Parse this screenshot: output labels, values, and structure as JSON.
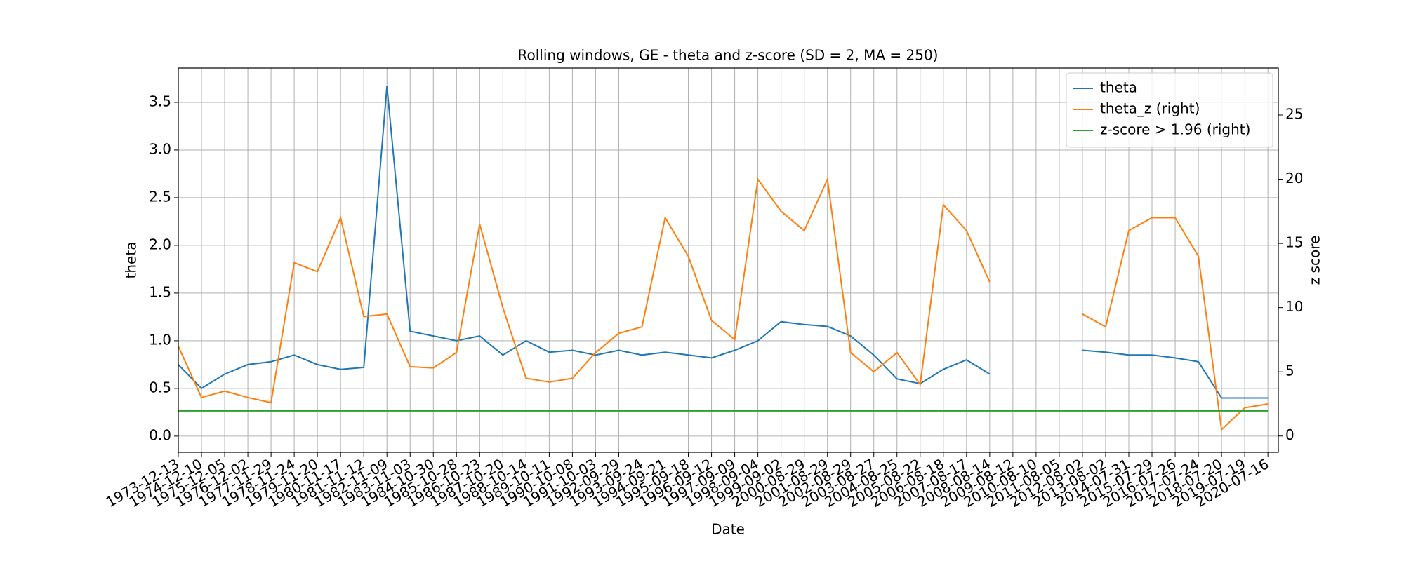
{
  "chart_data": {
    "type": "line",
    "title": "Rolling windows, GE - theta and z-score (SD = 2, MA = 250)",
    "x_label": "Date",
    "y_label": "theta",
    "y2_label": "z score",
    "categories": [
      "1973-12-13",
      "1974-12-10",
      "1975-12-05",
      "1976-12-02",
      "1977-11-29",
      "1978-11-24",
      "1979-11-20",
      "1980-11-17",
      "1981-11-12",
      "1982-11-09",
      "1983-11-03",
      "1984-10-30",
      "1985-10-28",
      "1986-10-23",
      "1987-10-20",
      "1988-10-14",
      "1989-10-11",
      "1990-10-08",
      "1991-10-03",
      "1992-09-29",
      "1993-09-24",
      "1994-09-21",
      "1995-09-18",
      "1996-09-12",
      "1997-09-09",
      "1998-09-04",
      "1999-09-02",
      "2000-08-29",
      "2001-08-29",
      "2002-08-29",
      "2003-08-27",
      "2004-08-25",
      "2005-08-22",
      "2006-08-18",
      "2007-08-17",
      "2008-08-14",
      "2009-08-12",
      "2010-08-10",
      "2011-08-05",
      "2012-08-02",
      "2013-08-02",
      "2014-07-31",
      "2015-07-29",
      "2016-07-26",
      "2017-07-24",
      "2018-07-20",
      "2019-07-19",
      "2020-07-16"
    ],
    "series": [
      {
        "name": "theta",
        "color": "#1f77b4",
        "axis": "y",
        "values": [
          0.75,
          0.5,
          0.65,
          0.75,
          0.78,
          0.85,
          0.75,
          0.7,
          0.72,
          3.67,
          1.1,
          1.05,
          1.0,
          1.05,
          0.85,
          1.0,
          0.88,
          0.9,
          0.85,
          0.9,
          0.85,
          0.88,
          0.85,
          0.82,
          0.9,
          1.0,
          1.2,
          1.17,
          1.15,
          1.05,
          0.85,
          0.6,
          0.55,
          0.7,
          0.8,
          0.65,
          null,
          null,
          null,
          0.9,
          0.88,
          0.85,
          0.85,
          0.82,
          0.78,
          0.4,
          0.4,
          0.4
        ]
      },
      {
        "name": "theta_z (right)",
        "color": "#ff7f0e",
        "axis": "y2",
        "values": [
          7,
          3,
          3.5,
          3,
          2.6,
          13.5,
          12.8,
          17,
          9.3,
          9.5,
          5.4,
          5.3,
          6.5,
          16.5,
          10,
          4.5,
          4.2,
          4.5,
          6.5,
          8,
          8.5,
          17,
          14,
          9,
          7.5,
          20,
          17.5,
          16,
          20,
          6.5,
          5,
          6.5,
          4,
          18,
          16,
          12,
          null,
          null,
          null,
          9.5,
          8.5,
          16,
          17,
          17,
          14,
          0.5,
          2.2,
          2.5
        ]
      },
      {
        "name": "z-score > 1.96 (right)",
        "color": "#2ca02c",
        "axis": "y2",
        "values": [
          1.96,
          1.96,
          1.96,
          1.96,
          1.96,
          1.96,
          1.96,
          1.96,
          1.96,
          1.96,
          1.96,
          1.96,
          1.96,
          1.96,
          1.96,
          1.96,
          1.96,
          1.96,
          1.96,
          1.96,
          1.96,
          1.96,
          1.96,
          1.96,
          1.96,
          1.96,
          1.96,
          1.96,
          1.96,
          1.96,
          1.96,
          1.96,
          1.96,
          1.96,
          1.96,
          1.96,
          1.96,
          1.96,
          1.96,
          1.96,
          1.96,
          1.96,
          1.96,
          1.96,
          1.96,
          1.96,
          1.96,
          1.96
        ]
      }
    ],
    "ylim": [
      -0.17,
      3.86
    ],
    "yticks": [
      {
        "value": 0,
        "label": "0.0"
      },
      0.5,
      {
        "value": 1,
        "label": "1.0"
      },
      1.5,
      {
        "value": 2,
        "label": "2.0"
      },
      2.5,
      {
        "value": 3,
        "label": "3.0"
      },
      3.5
    ],
    "y2lim": [
      -1.27,
      28.66
    ],
    "y2ticks": [
      0,
      5,
      10,
      15,
      20,
      25
    ],
    "grid": true,
    "legend": "upper right"
  }
}
